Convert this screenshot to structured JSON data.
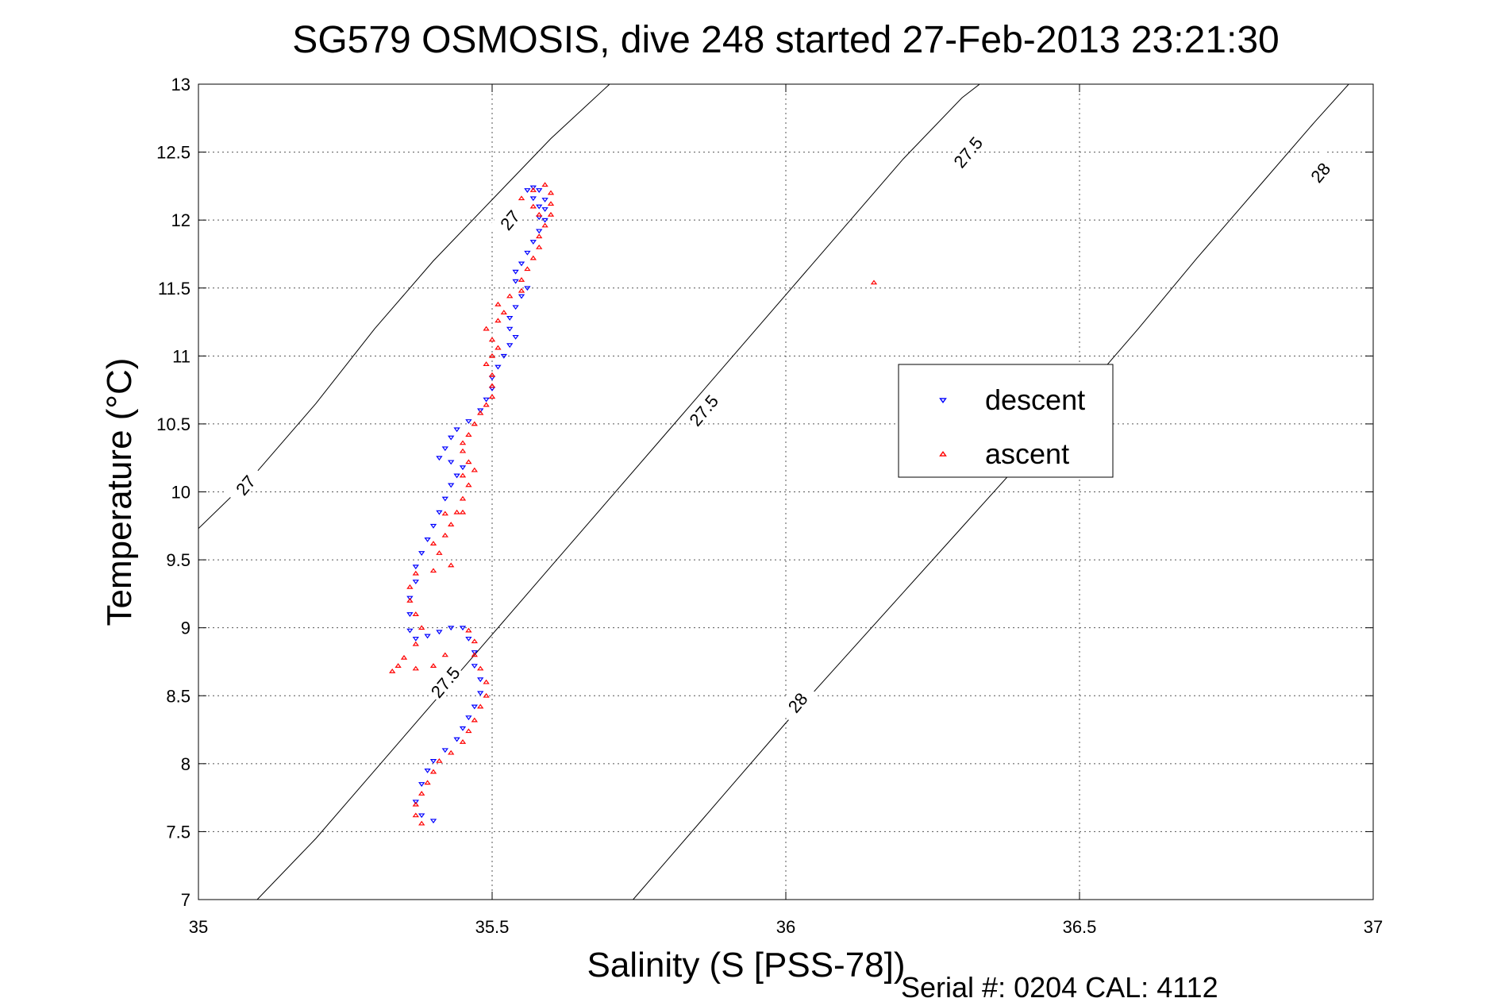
{
  "chart_data": {
    "type": "scatter",
    "title": "SG579 OSMOSIS, dive 248 started 27-Feb-2013 23:21:30",
    "xlabel": "Salinity (S [PSS-78])",
    "ylabel": "Temperature (°C)",
    "footer": "Serial #: 0204  CAL: 4112",
    "xlim": [
      35,
      37
    ],
    "ylim": [
      7,
      13
    ],
    "xticks": [
      35,
      35.5,
      36,
      36.5,
      37
    ],
    "xtick_labels": [
      "35",
      "35.5",
      "36",
      "36.5",
      "37"
    ],
    "yticks": [
      7,
      7.5,
      8,
      8.5,
      9,
      9.5,
      10,
      10.5,
      11,
      11.5,
      12,
      12.5,
      13
    ],
    "ytick_labels": [
      "7",
      "7.5",
      "8",
      "8.5",
      "9",
      "9.5",
      "10",
      "10.5",
      "11",
      "11.5",
      "12",
      "12.5",
      "13"
    ],
    "grid": true,
    "legend_position": "right",
    "isopycnals": [
      {
        "label": "27",
        "points": [
          [
            34.8,
            8.9
          ],
          [
            35.0,
            9.73
          ],
          [
            35.1,
            10.15
          ],
          [
            35.2,
            10.65
          ],
          [
            35.3,
            11.2
          ],
          [
            35.4,
            11.7
          ],
          [
            35.5,
            12.15
          ],
          [
            35.6,
            12.6
          ],
          [
            35.8,
            13.4
          ]
        ],
        "label_positions": [
          [
            35.08,
            10.05
          ],
          [
            35.53,
            12.0
          ]
        ]
      },
      {
        "label": "27.5",
        "points": [
          [
            35.1,
            7.0
          ],
          [
            35.2,
            7.45
          ],
          [
            35.3,
            7.95
          ],
          [
            35.4,
            8.45
          ],
          [
            35.5,
            8.95
          ],
          [
            35.6,
            9.45
          ],
          [
            35.7,
            9.95
          ],
          [
            35.8,
            10.45
          ],
          [
            35.9,
            10.95
          ],
          [
            36.0,
            11.45
          ],
          [
            36.1,
            11.95
          ],
          [
            36.2,
            12.45
          ],
          [
            36.3,
            12.9
          ],
          [
            36.45,
            13.4
          ]
        ],
        "label_positions": [
          [
            35.42,
            8.6
          ],
          [
            35.86,
            10.6
          ],
          [
            36.31,
            12.5
          ]
        ]
      },
      {
        "label": "28",
        "points": [
          [
            35.74,
            7.0
          ],
          [
            35.8,
            7.3
          ],
          [
            35.9,
            7.8
          ],
          [
            36.0,
            8.3
          ],
          [
            36.1,
            8.78
          ],
          [
            36.2,
            9.26
          ],
          [
            36.3,
            9.74
          ],
          [
            36.4,
            10.22
          ],
          [
            36.5,
            10.7
          ],
          [
            36.6,
            11.2
          ],
          [
            36.7,
            11.72
          ],
          [
            36.8,
            12.22
          ],
          [
            36.9,
            12.72
          ],
          [
            37.0,
            13.2
          ]
        ],
        "label_positions": [
          [
            36.02,
            8.45
          ],
          [
            36.91,
            12.35
          ]
        ]
      }
    ],
    "series": [
      {
        "name": "descent",
        "color": "#0000ff",
        "marker": "triangle-down",
        "points": [
          [
            35.4,
            7.58
          ],
          [
            35.38,
            7.62
          ],
          [
            35.37,
            7.72
          ],
          [
            35.38,
            7.85
          ],
          [
            35.39,
            7.95
          ],
          [
            35.4,
            8.02
          ],
          [
            35.42,
            8.1
          ],
          [
            35.44,
            8.18
          ],
          [
            35.45,
            8.26
          ],
          [
            35.46,
            8.34
          ],
          [
            35.47,
            8.42
          ],
          [
            35.48,
            8.52
          ],
          [
            35.48,
            8.62
          ],
          [
            35.47,
            8.72
          ],
          [
            35.47,
            8.82
          ],
          [
            35.46,
            8.92
          ],
          [
            35.45,
            9.0
          ],
          [
            35.43,
            9.0
          ],
          [
            35.41,
            8.97
          ],
          [
            35.39,
            8.94
          ],
          [
            35.37,
            8.92
          ],
          [
            35.36,
            8.98
          ],
          [
            35.36,
            9.1
          ],
          [
            35.36,
            9.22
          ],
          [
            35.37,
            9.34
          ],
          [
            35.37,
            9.45
          ],
          [
            35.38,
            9.55
          ],
          [
            35.39,
            9.65
          ],
          [
            35.4,
            9.75
          ],
          [
            35.41,
            9.85
          ],
          [
            35.42,
            9.95
          ],
          [
            35.43,
            10.05
          ],
          [
            35.44,
            10.12
          ],
          [
            35.45,
            10.18
          ],
          [
            35.43,
            10.22
          ],
          [
            35.41,
            10.25
          ],
          [
            35.42,
            10.32
          ],
          [
            35.43,
            10.4
          ],
          [
            35.44,
            10.46
          ],
          [
            35.46,
            10.52
          ],
          [
            35.48,
            10.6
          ],
          [
            35.49,
            10.68
          ],
          [
            35.5,
            10.76
          ],
          [
            35.5,
            10.84
          ],
          [
            35.51,
            10.92
          ],
          [
            35.52,
            11.0
          ],
          [
            35.53,
            11.08
          ],
          [
            35.54,
            11.14
          ],
          [
            35.53,
            11.2
          ],
          [
            35.53,
            11.28
          ],
          [
            35.54,
            11.36
          ],
          [
            35.55,
            11.44
          ],
          [
            35.56,
            11.5
          ],
          [
            35.54,
            11.55
          ],
          [
            35.54,
            11.62
          ],
          [
            35.55,
            11.68
          ],
          [
            35.56,
            11.76
          ],
          [
            35.57,
            11.84
          ],
          [
            35.58,
            11.92
          ],
          [
            35.59,
            12.0
          ],
          [
            35.59,
            12.08
          ],
          [
            35.59,
            12.15
          ],
          [
            35.58,
            12.22
          ],
          [
            35.57,
            12.24
          ],
          [
            35.56,
            12.22
          ],
          [
            35.57,
            12.16
          ],
          [
            35.58,
            12.1
          ],
          [
            35.58,
            12.02
          ]
        ]
      },
      {
        "name": "ascent",
        "color": "#ff0000",
        "marker": "triangle-up",
        "points": [
          [
            35.38,
            7.56
          ],
          [
            35.37,
            7.62
          ],
          [
            35.37,
            7.7
          ],
          [
            35.38,
            7.78
          ],
          [
            35.39,
            7.86
          ],
          [
            35.4,
            7.94
          ],
          [
            35.41,
            8.02
          ],
          [
            35.43,
            8.08
          ],
          [
            35.45,
            8.16
          ],
          [
            35.46,
            8.24
          ],
          [
            35.47,
            8.32
          ],
          [
            35.48,
            8.42
          ],
          [
            35.49,
            8.5
          ],
          [
            35.49,
            8.6
          ],
          [
            35.48,
            8.7
          ],
          [
            35.47,
            8.8
          ],
          [
            35.47,
            8.9
          ],
          [
            35.46,
            8.98
          ],
          [
            35.42,
            8.8
          ],
          [
            35.4,
            8.72
          ],
          [
            35.37,
            8.7
          ],
          [
            35.34,
            8.72
          ],
          [
            35.33,
            8.68
          ],
          [
            35.35,
            8.78
          ],
          [
            35.37,
            8.88
          ],
          [
            35.38,
            9.0
          ],
          [
            35.37,
            9.1
          ],
          [
            35.36,
            9.2
          ],
          [
            35.36,
            9.3
          ],
          [
            35.37,
            9.4
          ],
          [
            35.4,
            9.42
          ],
          [
            35.43,
            9.46
          ],
          [
            35.41,
            9.55
          ],
          [
            35.4,
            9.62
          ],
          [
            35.42,
            9.68
          ],
          [
            35.43,
            9.76
          ],
          [
            35.42,
            9.84
          ],
          [
            35.44,
            9.85
          ],
          [
            35.45,
            9.85
          ],
          [
            35.45,
            9.95
          ],
          [
            35.46,
            10.05
          ],
          [
            35.45,
            10.12
          ],
          [
            35.47,
            10.16
          ],
          [
            35.46,
            10.22
          ],
          [
            35.45,
            10.3
          ],
          [
            35.45,
            10.36
          ],
          [
            35.46,
            10.42
          ],
          [
            35.47,
            10.5
          ],
          [
            35.48,
            10.58
          ],
          [
            35.49,
            10.64
          ],
          [
            35.5,
            10.7
          ],
          [
            35.5,
            10.78
          ],
          [
            35.5,
            10.86
          ],
          [
            35.49,
            10.94
          ],
          [
            35.5,
            11.0
          ],
          [
            35.51,
            11.06
          ],
          [
            35.5,
            11.12
          ],
          [
            35.49,
            11.2
          ],
          [
            35.51,
            11.26
          ],
          [
            35.52,
            11.32
          ],
          [
            35.51,
            11.38
          ],
          [
            35.53,
            11.44
          ],
          [
            35.55,
            11.48
          ],
          [
            35.55,
            11.56
          ],
          [
            35.56,
            11.64
          ],
          [
            35.57,
            11.72
          ],
          [
            35.58,
            11.8
          ],
          [
            35.58,
            11.88
          ],
          [
            35.59,
            11.96
          ],
          [
            35.6,
            12.04
          ],
          [
            35.6,
            12.12
          ],
          [
            35.6,
            12.2
          ],
          [
            35.59,
            12.26
          ],
          [
            35.57,
            12.22
          ],
          [
            35.55,
            12.16
          ],
          [
            35.57,
            12.1
          ],
          [
            35.58,
            12.04
          ],
          [
            36.15,
            11.54
          ]
        ]
      }
    ]
  }
}
